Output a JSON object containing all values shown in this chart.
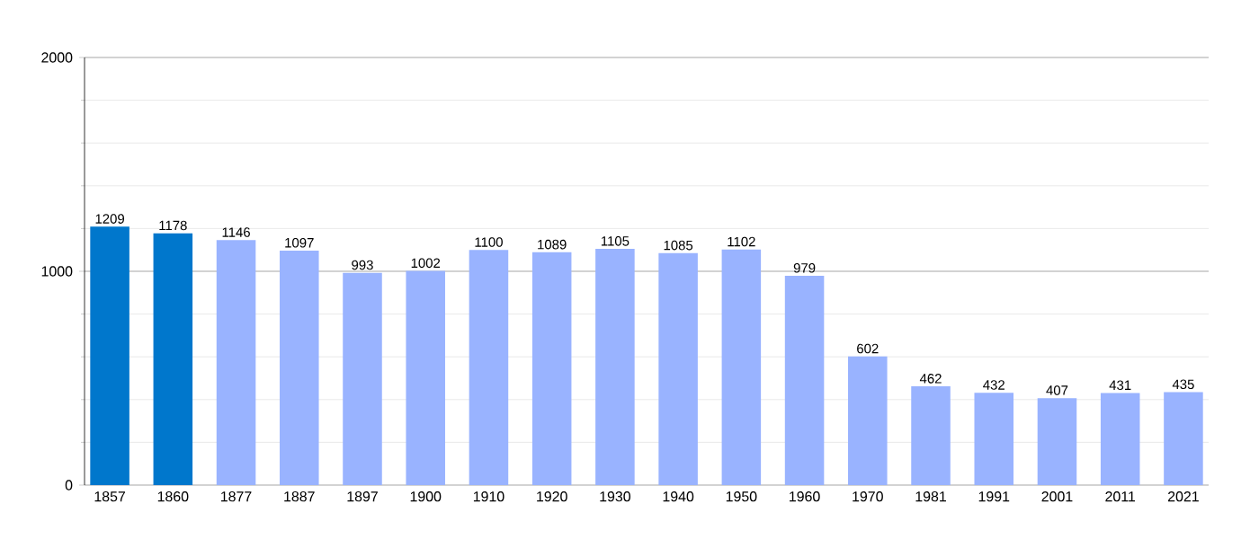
{
  "chart_data": {
    "type": "bar",
    "categories": [
      "1857",
      "1860",
      "1877",
      "1887",
      "1897",
      "1900",
      "1910",
      "1920",
      "1930",
      "1940",
      "1950",
      "1960",
      "1970",
      "1981",
      "1991",
      "2001",
      "2011",
      "2021"
    ],
    "values": [
      1209,
      1178,
      1146,
      1097,
      993,
      1002,
      1100,
      1089,
      1105,
      1085,
      1102,
      979,
      602,
      462,
      432,
      407,
      431,
      435
    ],
    "colors": [
      "#0077cc",
      "#0077cc",
      "#99b3ff",
      "#99b3ff",
      "#99b3ff",
      "#99b3ff",
      "#99b3ff",
      "#99b3ff",
      "#99b3ff",
      "#99b3ff",
      "#99b3ff",
      "#99b3ff",
      "#99b3ff",
      "#99b3ff",
      "#99b3ff",
      "#99b3ff",
      "#99b3ff",
      "#99b3ff"
    ],
    "ylim": [
      0,
      2000
    ],
    "yticks": [
      0,
      1000,
      2000
    ],
    "grid": "y",
    "data_labels": true
  }
}
